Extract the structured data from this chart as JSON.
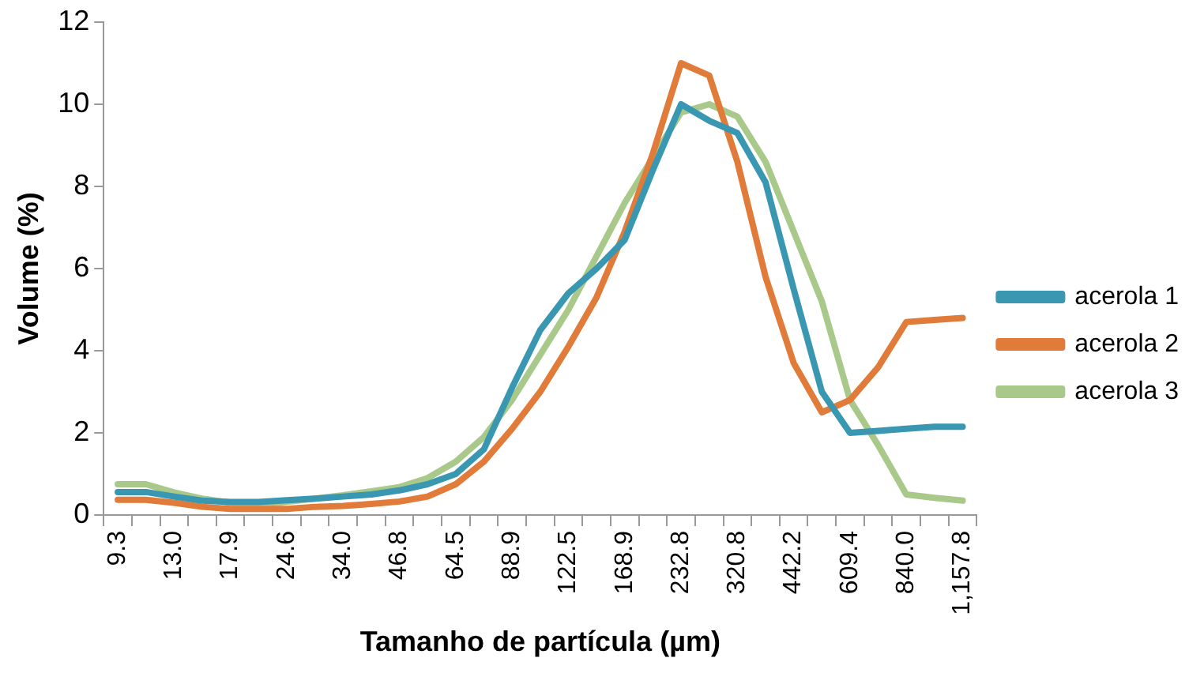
{
  "chart_data": {
    "type": "line",
    "xlabel": "Tamanho de partícula (µm)",
    "ylabel": "Volume (%)",
    "categories": [
      "9.3",
      null,
      "13.0",
      null,
      "17.9",
      null,
      "24.6",
      null,
      "34.0",
      null,
      "46.8",
      null,
      "64.5",
      null,
      "88.9",
      null,
      "122.5",
      null,
      "168.9",
      null,
      "232.8",
      null,
      "320.8",
      null,
      "442.2",
      null,
      "609.4",
      null,
      "840.0",
      null,
      "1,157.8"
    ],
    "series": [
      {
        "name": "acerola 1",
        "color": "#3a97b1",
        "values": [
          0.56,
          0.56,
          0.45,
          0.35,
          0.32,
          0.32,
          0.36,
          0.4,
          0.45,
          0.5,
          0.6,
          0.75,
          1.0,
          1.6,
          3.1,
          4.5,
          5.4,
          6.0,
          6.7,
          8.4,
          10.0,
          9.6,
          9.3,
          8.1,
          5.5,
          3.0,
          2.0,
          2.05,
          2.1,
          2.15,
          2.15
        ]
      },
      {
        "name": "acerola 2",
        "color": "#e07b39",
        "values": [
          0.37,
          0.37,
          0.3,
          0.2,
          0.15,
          0.15,
          0.15,
          0.2,
          0.22,
          0.27,
          0.33,
          0.45,
          0.75,
          1.3,
          2.1,
          3.0,
          4.1,
          5.3,
          6.9,
          8.8,
          11.0,
          10.7,
          8.6,
          5.8,
          3.7,
          2.5,
          2.8,
          3.6,
          4.7,
          4.75,
          4.8
        ]
      },
      {
        "name": "acerola 3",
        "color": "#a9c98a",
        "values": [
          0.75,
          0.75,
          0.55,
          0.4,
          0.3,
          0.25,
          0.32,
          0.4,
          0.48,
          0.58,
          0.68,
          0.9,
          1.3,
          1.9,
          2.8,
          3.9,
          5.0,
          6.3,
          7.6,
          8.7,
          9.8,
          10.0,
          9.7,
          8.6,
          6.9,
          5.2,
          2.8,
          1.7,
          0.5,
          0.42,
          0.35
        ]
      }
    ],
    "ylim": [
      0,
      12
    ],
    "yticks": [
      0,
      2,
      4,
      6,
      8,
      10,
      12
    ],
    "grid": false,
    "legend": "right",
    "marker": "none",
    "line_style": "solid"
  }
}
